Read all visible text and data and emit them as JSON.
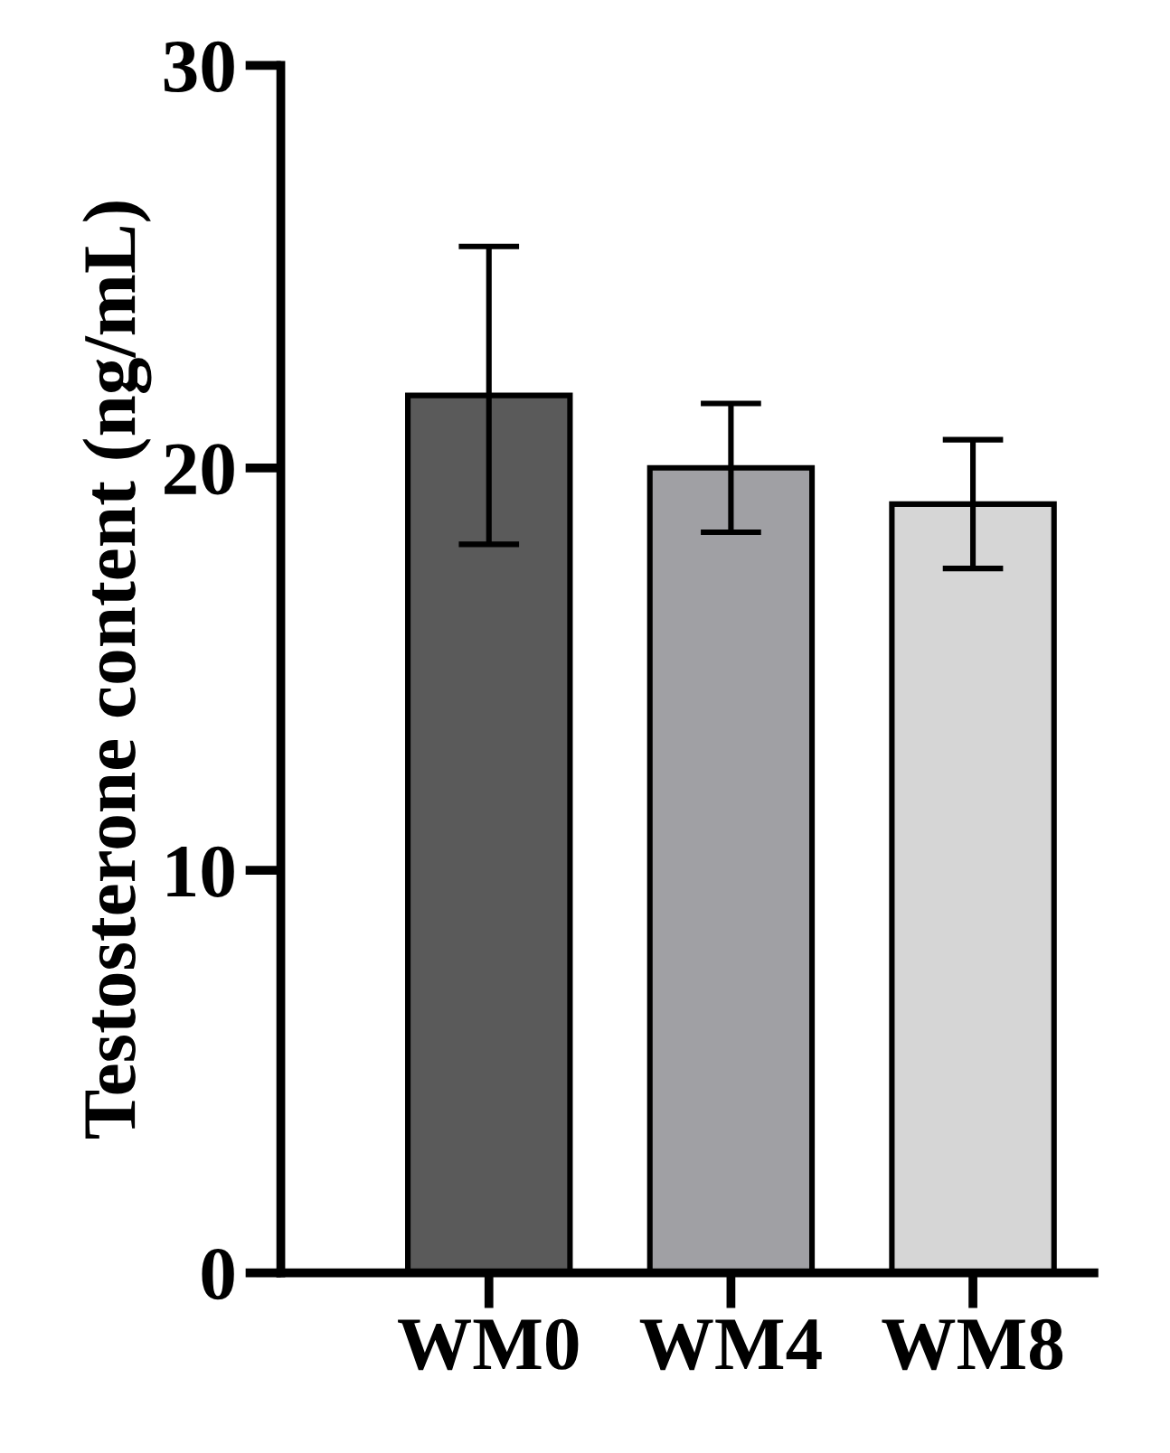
{
  "chart_data": {
    "type": "bar",
    "ylabel": "Testosterone content (ng/mL)",
    "categories": [
      "WM0",
      "WM4",
      "WM8"
    ],
    "values": [
      21.8,
      20.0,
      19.1
    ],
    "errors": [
      3.7,
      1.6,
      1.6
    ],
    "colors": [
      "#5a5a5a",
      "#a0a0a4",
      "#d6d6d6"
    ],
    "ylim": [
      0,
      30
    ],
    "yticks": [
      0,
      10,
      20,
      30
    ],
    "grid": false,
    "legend": false
  }
}
